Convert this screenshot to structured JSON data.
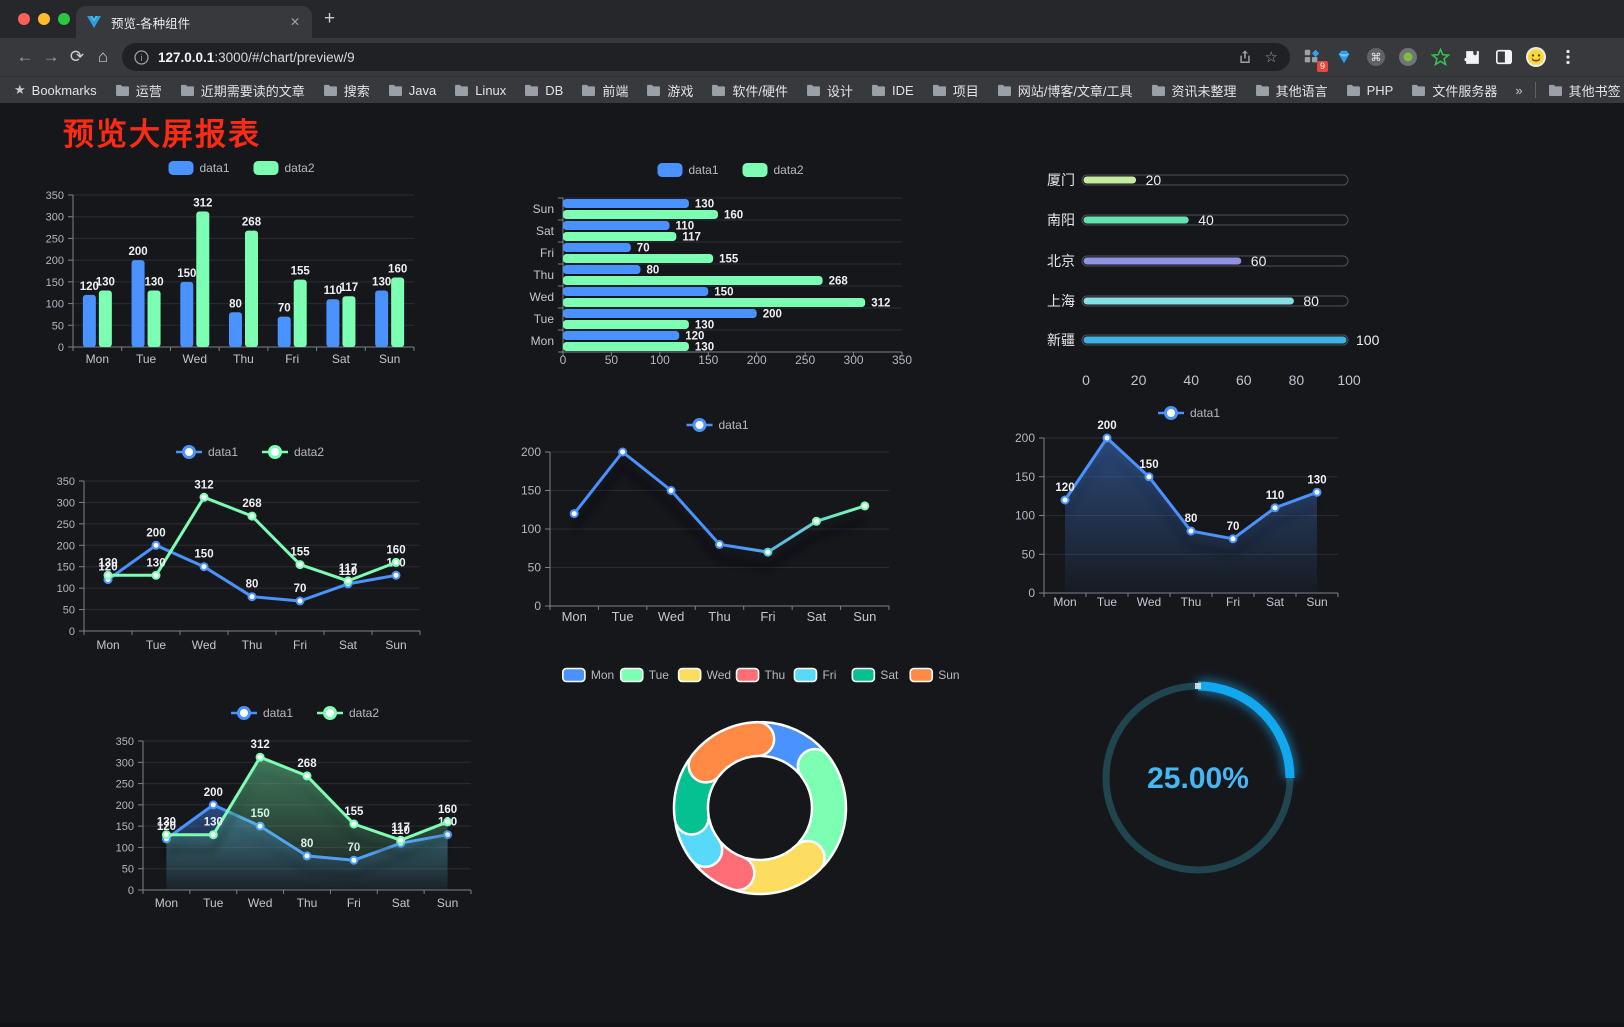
{
  "browser": {
    "tab_title": "预览-各种组件",
    "close_glyph": "✕",
    "new_tab_glyph": "+",
    "url_host": "127.0.0.1",
    "url_path": ":3000/#/chart/preview/9",
    "bookmarks_label": "Bookmarks",
    "bookmarks": [
      "运营",
      "近期需要读的文章",
      "搜索",
      "Java",
      "Linux",
      "DB",
      "前端",
      "游戏",
      "软件/硬件",
      "设计",
      "IDE",
      "项目",
      "网站/博客/文章/工具",
      "资讯未整理",
      "其他语言",
      "PHP",
      "文件服务器"
    ],
    "bookmarks_overflow_glyph": "»",
    "other_bookmarks_label": "其他书签",
    "extensions": [
      {
        "icon": "grid",
        "badge": "9"
      },
      {
        "icon": "diamond"
      },
      {
        "icon": "command"
      },
      {
        "icon": "record"
      },
      {
        "icon": "green-star"
      },
      {
        "icon": "puzzle"
      },
      {
        "icon": "split-square"
      },
      {
        "icon": "emoji-face"
      },
      {
        "icon": "kebab-menu"
      }
    ]
  },
  "page": {
    "title": "预览大屏报表",
    "title_color": "#fb2b16"
  },
  "chart_data": [
    {
      "id": "bar-vertical",
      "type": "bar",
      "categories": [
        "Mon",
        "Tue",
        "Wed",
        "Thu",
        "Fri",
        "Sat",
        "Sun"
      ],
      "series": [
        {
          "name": "data1",
          "color": "#4992ff",
          "values": [
            120,
            200,
            150,
            80,
            70,
            110,
            130
          ]
        },
        {
          "name": "data2",
          "color": "#7cffb2",
          "values": [
            130,
            130,
            312,
            268,
            155,
            117,
            160
          ]
        }
      ],
      "ylim": [
        0,
        350
      ],
      "ytick": 50,
      "grid": true,
      "value_labels": true,
      "legend_position": "top"
    },
    {
      "id": "bar-horizontal",
      "type": "bar-horizontal",
      "categories": [
        "Mon",
        "Tue",
        "Wed",
        "Thu",
        "Fri",
        "Sat",
        "Sun"
      ],
      "row_order_top_to_bottom": [
        "Sun",
        "Sat",
        "Fri",
        "Thu",
        "Wed",
        "Tue",
        "Mon"
      ],
      "series": [
        {
          "name": "data1",
          "color": "#4992ff",
          "values": [
            120,
            200,
            150,
            80,
            70,
            110,
            130
          ]
        },
        {
          "name": "data2",
          "color": "#7cffb2",
          "values": [
            130,
            130,
            312,
            268,
            155,
            117,
            160
          ]
        }
      ],
      "xlim": [
        0,
        350
      ],
      "xtick": 50,
      "value_labels": true,
      "legend_position": "top"
    },
    {
      "id": "city-progress",
      "type": "progress",
      "rows": [
        {
          "label": "厦门",
          "value": 20,
          "color": "#c7eb9e"
        },
        {
          "label": "南阳",
          "value": 40,
          "color": "#62e2ae"
        },
        {
          "label": "北京",
          "value": 60,
          "color": "#8e94e3"
        },
        {
          "label": "上海",
          "value": 80,
          "color": "#87dee3"
        },
        {
          "label": "新疆",
          "value": 100,
          "color": "#3fb1e3"
        }
      ],
      "xlim": [
        0,
        100
      ],
      "xticks": [
        0,
        20,
        40,
        60,
        80,
        100
      ]
    },
    {
      "id": "line-two",
      "type": "line",
      "categories": [
        "Mon",
        "Tue",
        "Wed",
        "Thu",
        "Fri",
        "Sat",
        "Sun"
      ],
      "series": [
        {
          "name": "data1",
          "color": "#4992ff",
          "values": [
            120,
            200,
            150,
            80,
            70,
            110,
            130
          ]
        },
        {
          "name": "data2",
          "color": "#7cffb2",
          "values": [
            130,
            130,
            312,
            268,
            155,
            117,
            160
          ]
        }
      ],
      "ylim": [
        0,
        350
      ],
      "ytick": 50,
      "value_labels": true,
      "legend_position": "top"
    },
    {
      "id": "line-gradient",
      "type": "line",
      "categories": [
        "Mon",
        "Tue",
        "Wed",
        "Thu",
        "Fri",
        "Sat",
        "Sun"
      ],
      "series": [
        {
          "name": "data1",
          "color": "#4992ff",
          "color_end": "#7cffb2",
          "values": [
            120,
            200,
            150,
            80,
            70,
            110,
            130
          ]
        }
      ],
      "ylim": [
        0,
        200
      ],
      "ytick": 50,
      "value_labels": false,
      "gradient": true,
      "shadow": true,
      "legend_position": "top"
    },
    {
      "id": "area-single",
      "type": "line",
      "area": true,
      "shadow": true,
      "categories": [
        "Mon",
        "Tue",
        "Wed",
        "Thu",
        "Fri",
        "Sat",
        "Sun"
      ],
      "series": [
        {
          "name": "data1",
          "color": "#4992ff",
          "values": [
            120,
            200,
            150,
            80,
            70,
            110,
            130
          ]
        }
      ],
      "ylim": [
        0,
        200
      ],
      "ytick": 50,
      "value_labels": true,
      "legend_position": "top"
    },
    {
      "id": "area-two",
      "type": "line",
      "area": true,
      "shadow": true,
      "categories": [
        "Mon",
        "Tue",
        "Wed",
        "Thu",
        "Fri",
        "Sat",
        "Sun"
      ],
      "series": [
        {
          "name": "data1",
          "color": "#4992ff",
          "values": [
            120,
            200,
            150,
            80,
            70,
            110,
            130
          ]
        },
        {
          "name": "data2",
          "color": "#7cffb2",
          "values": [
            130,
            130,
            312,
            268,
            155,
            117,
            160
          ]
        }
      ],
      "ylim": [
        0,
        350
      ],
      "ytick": 50,
      "value_labels": true,
      "legend_position": "top"
    },
    {
      "id": "donut",
      "type": "pie",
      "categories": [
        "Mon",
        "Tue",
        "Wed",
        "Thu",
        "Fri",
        "Sat",
        "Sun"
      ],
      "values": [
        120,
        200,
        150,
        80,
        70,
        110,
        130
      ],
      "colors": [
        "#4992ff",
        "#7cffb2",
        "#fddd60",
        "#ff6e76",
        "#58d9f9",
        "#05c091",
        "#ff8a45"
      ],
      "border_color": "#ffffff",
      "inner_radius_ratio": 0.6,
      "legend_position": "top"
    },
    {
      "id": "gauge",
      "type": "gauge",
      "value": 25,
      "label": "25.00%",
      "progress_color": "#12a8f0",
      "track_color": "#20454f",
      "text_color": "#45b7f5"
    }
  ]
}
